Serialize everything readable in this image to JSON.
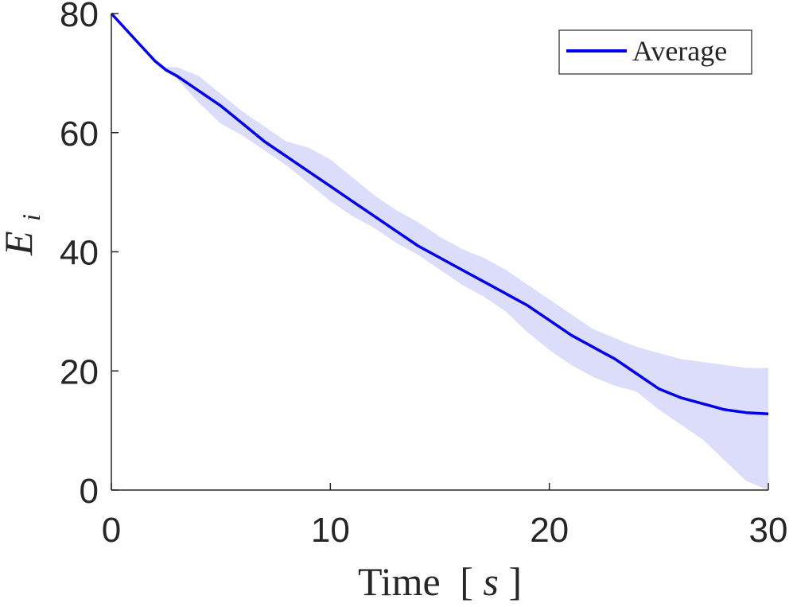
{
  "chart_data": {
    "type": "line",
    "title": "",
    "xlabel_main": "Time",
    "xlabel_unit_open": "[",
    "xlabel_unit_var": "s",
    "xlabel_unit_close": "]",
    "ylabel_main": "E",
    "ylabel_sub": "i",
    "xlim": [
      0,
      30
    ],
    "ylim": [
      0,
      80
    ],
    "xticks": [
      0,
      10,
      20,
      30
    ],
    "yticks": [
      0,
      20,
      40,
      60,
      80
    ],
    "grid": false,
    "legend_position": "top-right",
    "colors": {
      "line": "#0000e6",
      "band": "#dcdcfb",
      "axis": "#262626"
    },
    "series": [
      {
        "name": "Average",
        "x": [
          0,
          1,
          2,
          2.5,
          3,
          4,
          5,
          6,
          7,
          8,
          9,
          10,
          11,
          12,
          13,
          14,
          15,
          16,
          17,
          18,
          19,
          20,
          21,
          22,
          23,
          24,
          25,
          26,
          27,
          28,
          29,
          30
        ],
        "values": [
          80,
          76,
          72,
          70.5,
          69.5,
          67,
          64.5,
          61.5,
          58.5,
          56,
          53.5,
          51,
          48.5,
          46,
          43.5,
          41,
          39,
          37,
          35,
          33,
          31,
          28.5,
          26,
          24,
          22,
          19.5,
          17,
          15.5,
          14.5,
          13.5,
          13,
          12.8
        ],
        "band_upper": [
          80,
          76,
          72,
          71,
          71,
          69.5,
          66.5,
          63.5,
          61,
          58.5,
          57.5,
          55.5,
          52.5,
          49.5,
          47,
          45,
          42.5,
          40.5,
          39,
          37,
          34.5,
          32,
          29.5,
          27,
          25.5,
          24,
          23,
          22,
          21.5,
          21,
          20.5,
          20.5
        ],
        "band_lower": [
          80,
          76,
          72,
          70.5,
          69,
          65,
          61.5,
          59.5,
          57,
          54.5,
          51.5,
          48.5,
          46,
          44,
          41.5,
          39.5,
          37,
          34.5,
          32.5,
          30,
          26.5,
          23.5,
          21,
          19,
          17.5,
          16.5,
          13.5,
          11,
          8.5,
          5,
          1.5,
          0
        ]
      }
    ]
  }
}
